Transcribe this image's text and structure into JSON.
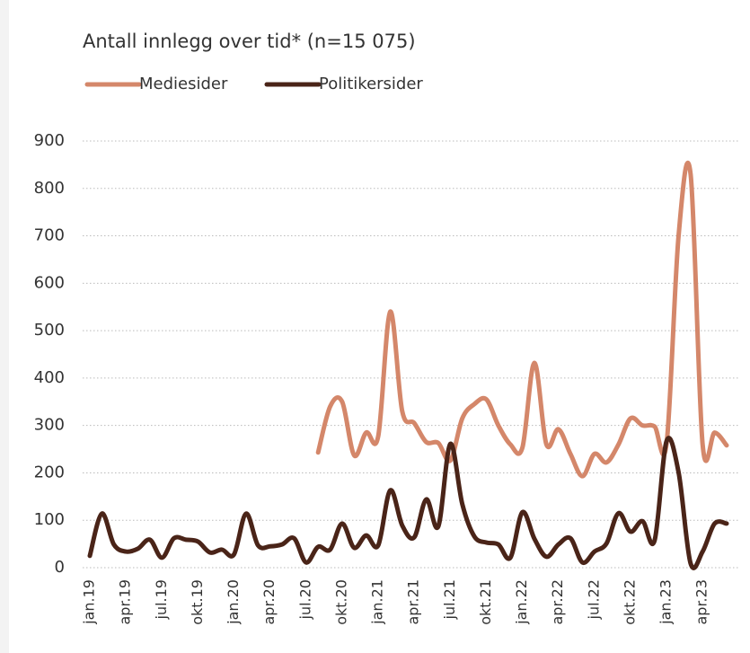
{
  "chart_data": {
    "type": "line",
    "title": "Antall innlegg over tid* (n=15 075)",
    "categories": [
      "jan.19",
      null,
      null,
      "apr.19",
      null,
      null,
      "jul.19",
      null,
      null,
      "okt.19",
      null,
      null,
      "jan.20",
      null,
      null,
      "apr.20",
      null,
      null,
      "jul.20",
      null,
      null,
      "okt.20",
      null,
      null,
      "jan.21",
      null,
      null,
      "apr.21",
      null,
      null,
      "jul.21",
      null,
      null,
      "okt.21",
      null,
      null,
      "jan.22",
      null,
      null,
      "apr.22",
      null,
      null,
      "jul.22",
      null,
      null,
      "okt.22",
      null,
      null,
      "jan.23",
      null,
      null,
      "apr.23",
      null,
      null
    ],
    "series": [
      {
        "name": "Mediesider",
        "color": "#d4876a",
        "values": [
          null,
          null,
          null,
          null,
          null,
          null,
          null,
          null,
          null,
          null,
          null,
          null,
          null,
          null,
          null,
          null,
          null,
          null,
          null,
          243,
          340,
          350,
          237,
          285,
          277,
          540,
          330,
          305,
          265,
          263,
          226,
          315,
          345,
          355,
          300,
          260,
          253,
          432,
          260,
          292,
          240,
          193,
          240,
          222,
          260,
          315,
          300,
          298,
          262,
          700,
          830,
          260,
          285,
          258
        ]
      },
      {
        "name": "Politikersider",
        "color": "#4a2418",
        "values": [
          25,
          114,
          49,
          34,
          40,
          59,
          21,
          62,
          59,
          55,
          32,
          38,
          28,
          114,
          47,
          45,
          49,
          62,
          11,
          44,
          38,
          93,
          42,
          68,
          47,
          163,
          89,
          64,
          144,
          87,
          261,
          134,
          66,
          53,
          49,
          21,
          117,
          61,
          23,
          49,
          62,
          11,
          34,
          51,
          115,
          76,
          98,
          57,
          267,
          201,
          9,
          34,
          93,
          93
        ]
      }
    ],
    "ylim": [
      0,
      900
    ],
    "yticks": [
      0,
      100,
      200,
      300,
      400,
      500,
      600,
      700,
      800,
      900
    ],
    "grid": true
  }
}
